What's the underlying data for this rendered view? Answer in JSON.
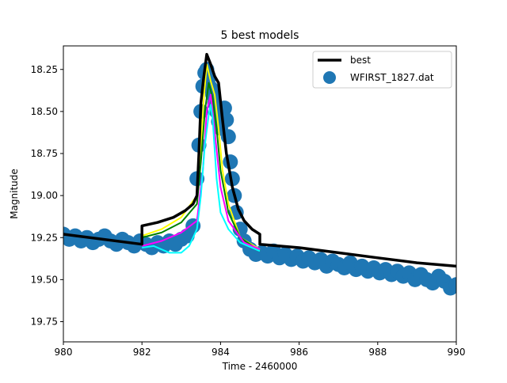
{
  "chart_data": {
    "type": "scatter",
    "title": "5 best models",
    "xlabel": "Time - 2460000",
    "ylabel": "Magnitude",
    "xlim": [
      980,
      990
    ],
    "ylim": [
      19.87,
      18.11
    ],
    "y_inverted": true,
    "x_ticks": [
      980,
      982,
      984,
      986,
      988,
      990
    ],
    "x_tick_labels": [
      "980",
      "982",
      "984",
      "986",
      "988",
      "990"
    ],
    "y_ticks": [
      18.25,
      18.5,
      18.75,
      19.0,
      19.25,
      19.5,
      19.75
    ],
    "y_tick_labels": [
      "18.25",
      "18.50",
      "18.75",
      "19.00",
      "19.25",
      "19.50",
      "19.75"
    ],
    "grid": false,
    "legend": {
      "placement": "top-right",
      "entries": [
        {
          "label": "best",
          "kind": "line",
          "color": "#000000"
        },
        {
          "label": "WFIRST_1827.dat",
          "kind": "marker",
          "color": "#1f77b4"
        }
      ]
    },
    "observations": {
      "name": "WFIRST_1827.dat",
      "color": "#1f77b4",
      "points": [
        [
          980.0,
          19.23
        ],
        [
          980.15,
          19.26
        ],
        [
          980.3,
          19.24
        ],
        [
          980.45,
          19.27
        ],
        [
          980.6,
          19.25
        ],
        [
          980.75,
          19.28
        ],
        [
          980.9,
          19.26
        ],
        [
          981.05,
          19.24
        ],
        [
          981.2,
          19.27
        ],
        [
          981.35,
          19.29
        ],
        [
          981.5,
          19.26
        ],
        [
          981.65,
          19.28
        ],
        [
          981.8,
          19.3
        ],
        [
          981.95,
          19.27
        ],
        [
          982.1,
          19.29
        ],
        [
          982.25,
          19.31
        ],
        [
          982.4,
          19.28
        ],
        [
          982.55,
          19.3
        ],
        [
          982.7,
          19.27
        ],
        [
          982.85,
          19.29
        ],
        [
          983.0,
          19.26
        ],
        [
          983.15,
          19.24
        ],
        [
          983.3,
          19.18
        ],
        [
          983.4,
          18.9
        ],
        [
          983.45,
          18.7
        ],
        [
          983.5,
          18.5
        ],
        [
          983.55,
          18.35
        ],
        [
          983.6,
          18.27
        ],
        [
          983.65,
          18.25
        ],
        [
          983.7,
          18.3
        ],
        [
          983.75,
          18.36
        ],
        [
          983.8,
          18.4
        ],
        [
          983.85,
          18.45
        ],
        [
          983.9,
          18.5
        ],
        [
          983.95,
          18.56
        ],
        [
          984.0,
          18.6
        ],
        [
          984.05,
          18.52
        ],
        [
          984.1,
          18.48
        ],
        [
          984.15,
          18.55
        ],
        [
          984.2,
          18.65
        ],
        [
          984.25,
          18.8
        ],
        [
          984.3,
          18.9
        ],
        [
          984.35,
          19.0
        ],
        [
          984.4,
          19.1
        ],
        [
          984.5,
          19.2
        ],
        [
          984.6,
          19.27
        ],
        [
          984.75,
          19.32
        ],
        [
          984.9,
          19.35
        ],
        [
          985.05,
          19.34
        ],
        [
          985.2,
          19.36
        ],
        [
          985.35,
          19.33
        ],
        [
          985.5,
          19.37
        ],
        [
          985.65,
          19.35
        ],
        [
          985.8,
          19.38
        ],
        [
          985.95,
          19.36
        ],
        [
          986.1,
          19.39
        ],
        [
          986.25,
          19.37
        ],
        [
          986.4,
          19.4
        ],
        [
          986.55,
          19.38
        ],
        [
          986.7,
          19.42
        ],
        [
          986.85,
          19.39
        ],
        [
          987.0,
          19.41
        ],
        [
          987.15,
          19.43
        ],
        [
          987.3,
          19.4
        ],
        [
          987.45,
          19.44
        ],
        [
          987.6,
          19.42
        ],
        [
          987.75,
          19.45
        ],
        [
          987.9,
          19.43
        ],
        [
          988.05,
          19.46
        ],
        [
          988.2,
          19.44
        ],
        [
          988.35,
          19.47
        ],
        [
          988.5,
          19.45
        ],
        [
          988.65,
          19.48
        ],
        [
          988.8,
          19.46
        ],
        [
          988.95,
          19.5
        ],
        [
          989.1,
          19.47
        ],
        [
          989.25,
          19.5
        ],
        [
          989.4,
          19.52
        ],
        [
          989.55,
          19.48
        ],
        [
          989.7,
          19.51
        ],
        [
          989.85,
          19.55
        ],
        [
          990.0,
          19.53
        ]
      ]
    },
    "series": [
      {
        "name": "best",
        "color": "#000000",
        "width": 3.5,
        "points": [
          [
            980.0,
            19.23
          ],
          [
            982.0,
            19.29
          ],
          [
            982.0,
            19.18
          ],
          [
            982.4,
            19.16
          ],
          [
            982.8,
            19.13
          ],
          [
            983.1,
            19.09
          ],
          [
            983.3,
            19.05
          ],
          [
            983.4,
            19.0
          ],
          [
            983.45,
            18.75
          ],
          [
            983.5,
            18.45
          ],
          [
            983.57,
            18.3
          ],
          [
            983.65,
            18.16
          ],
          [
            983.75,
            18.22
          ],
          [
            983.85,
            18.29
          ],
          [
            983.95,
            18.33
          ],
          [
            984.05,
            18.55
          ],
          [
            984.15,
            18.75
          ],
          [
            984.3,
            18.95
          ],
          [
            984.45,
            19.08
          ],
          [
            984.6,
            19.15
          ],
          [
            984.8,
            19.2
          ],
          [
            985.0,
            19.23
          ],
          [
            985.0,
            19.29
          ],
          [
            986.0,
            19.31
          ],
          [
            987.0,
            19.34
          ],
          [
            988.0,
            19.37
          ],
          [
            989.0,
            19.4
          ],
          [
            990.0,
            19.42
          ]
        ]
      },
      {
        "color": "#ffff00",
        "width": 2,
        "points": [
          [
            982.0,
            19.24
          ],
          [
            982.5,
            19.2
          ],
          [
            983.0,
            19.13
          ],
          [
            983.4,
            19.0
          ],
          [
            983.5,
            18.7
          ],
          [
            983.58,
            18.4
          ],
          [
            983.65,
            18.22
          ],
          [
            983.75,
            18.32
          ],
          [
            983.85,
            18.4
          ],
          [
            983.95,
            18.6
          ],
          [
            984.05,
            18.85
          ],
          [
            984.2,
            19.05
          ],
          [
            984.5,
            19.25
          ],
          [
            985.0,
            19.32
          ]
        ]
      },
      {
        "color": "#008000",
        "width": 2,
        "points": [
          [
            982.0,
            19.25
          ],
          [
            982.5,
            19.22
          ],
          [
            983.0,
            19.16
          ],
          [
            983.4,
            19.05
          ],
          [
            983.5,
            18.8
          ],
          [
            983.6,
            18.5
          ],
          [
            983.7,
            18.33
          ],
          [
            983.8,
            18.42
          ],
          [
            983.9,
            18.6
          ],
          [
            984.0,
            18.85
          ],
          [
            984.2,
            19.1
          ],
          [
            984.5,
            19.25
          ],
          [
            985.0,
            19.33
          ]
        ]
      },
      {
        "color": "#ff00ff",
        "width": 2,
        "points": [
          [
            982.0,
            19.3
          ],
          [
            982.5,
            19.27
          ],
          [
            983.0,
            19.22
          ],
          [
            983.4,
            19.15
          ],
          [
            983.55,
            18.85
          ],
          [
            983.65,
            18.5
          ],
          [
            983.75,
            18.4
          ],
          [
            983.85,
            18.62
          ],
          [
            984.0,
            18.95
          ],
          [
            984.2,
            19.15
          ],
          [
            984.6,
            19.28
          ],
          [
            985.0,
            19.32
          ]
        ]
      },
      {
        "color": "#00ffff",
        "width": 2,
        "points": [
          [
            982.0,
            19.31
          ],
          [
            982.3,
            19.3
          ],
          [
            982.7,
            19.34
          ],
          [
            983.0,
            19.34
          ],
          [
            983.2,
            19.3
          ],
          [
            983.4,
            19.2
          ],
          [
            983.5,
            19.0
          ],
          [
            983.6,
            18.7
          ],
          [
            983.7,
            18.52
          ],
          [
            983.75,
            18.46
          ],
          [
            983.8,
            18.55
          ],
          [
            983.9,
            18.9
          ],
          [
            984.0,
            19.1
          ],
          [
            984.2,
            19.2
          ],
          [
            984.5,
            19.28
          ],
          [
            985.0,
            19.33
          ]
        ]
      }
    ]
  }
}
